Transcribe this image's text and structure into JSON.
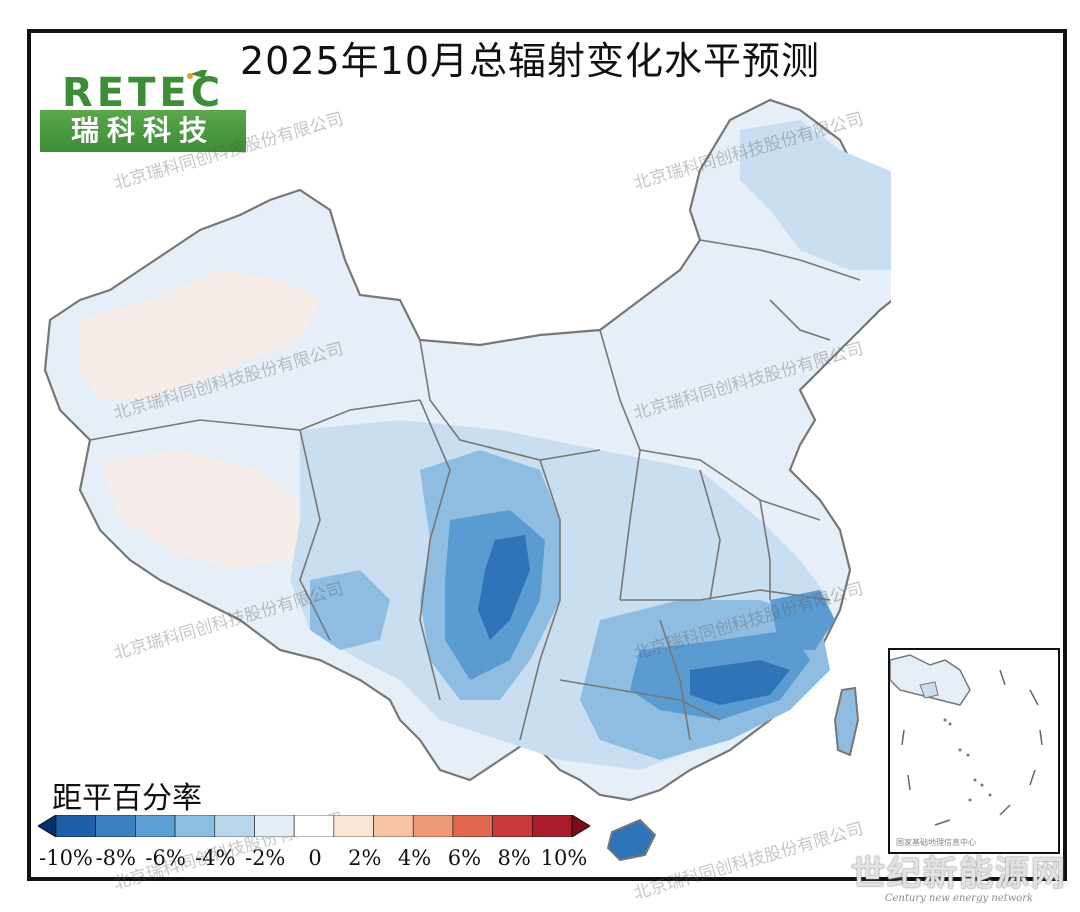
{
  "title": "2025年10月总辐射变化水平预测",
  "logo": {
    "top_text": "RETEC",
    "bottom_text": "瑞科科技"
  },
  "watermark_text": "北京瑞科同创科技股份有限公司",
  "legend": {
    "title": "距平百分率",
    "labels": [
      "-10%",
      "-8%",
      "-6%",
      "-4%",
      "-2%",
      "0",
      "2%",
      "4%",
      "6%",
      "8%",
      "10%"
    ],
    "colors": [
      "#08306b",
      "#1f5fa8",
      "#3a7fc0",
      "#5d9fd3",
      "#8cbde3",
      "#b8d6ee",
      "#e3eef8",
      "#ffffff",
      "#fbe3d5",
      "#f7c3a6",
      "#f0997a",
      "#e0684f",
      "#c9383a",
      "#a81c2b",
      "#7a0c1c"
    ]
  },
  "map_colors": {
    "base": "#e6eff8",
    "light_blue": "#c9def0",
    "mid_blue": "#8fbde2",
    "strong_blue": "#5a9bd2",
    "deep_blue": "#2f74b8",
    "light_peach": "#fbece3",
    "boundary": "#777777"
  },
  "inset": {
    "note": "国家基础地理信息中心"
  },
  "source_mark": {
    "main": "世纪新能源网",
    "sub": "Century new energy network"
  }
}
